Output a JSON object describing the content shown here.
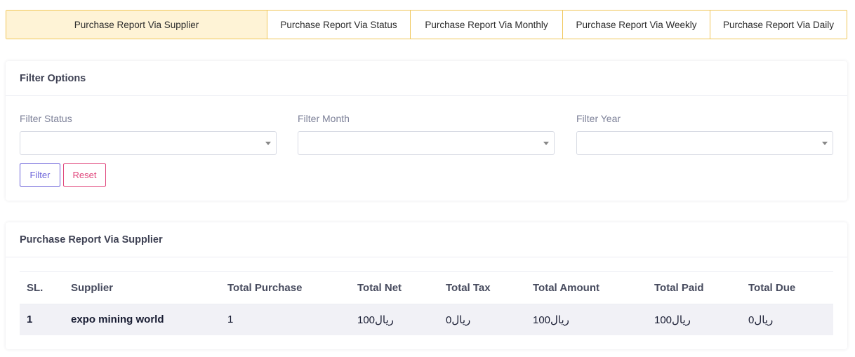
{
  "tabs": [
    "Purchase Report Via Supplier",
    "Purchase Report Via Status",
    "Purchase Report Via Monthly",
    "Purchase Report Via Weekly",
    "Purchase Report Via Daily"
  ],
  "filter_card": {
    "title": "Filter Options",
    "status_label": "Filter Status",
    "status_value": "",
    "month_label": "Filter Month",
    "month_value": "",
    "year_label": "Filter Year",
    "year_value": "",
    "filter_button": "Filter",
    "reset_button": "Reset"
  },
  "report_card": {
    "title": "Purchase Report Via Supplier",
    "columns": [
      "SL.",
      "Supplier",
      "Total Purchase",
      "Total Net",
      "Total Tax",
      "Total Amount",
      "Total Paid",
      "Total Due"
    ],
    "rows": [
      [
        "1",
        "expo mining world",
        "1",
        "100ريال",
        "0ريال",
        "100ريال",
        "100ريال",
        "0ريال"
      ]
    ]
  },
  "colors": {
    "tab_active_bg": "#fef3d6",
    "tab_border": "#f0c75a",
    "filter_button": "#6c63d9",
    "reset_button": "#e0457b",
    "row_bg": "#f1f1f6"
  }
}
